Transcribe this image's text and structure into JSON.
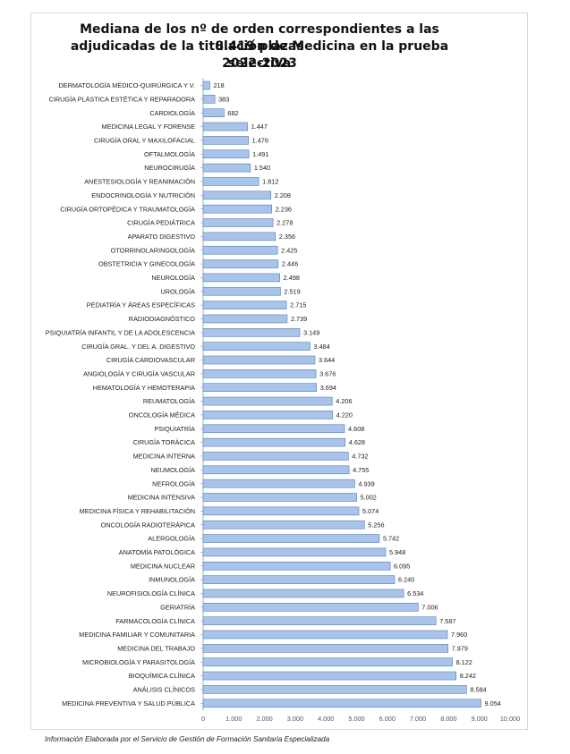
{
  "chart_data": {
    "type": "bar",
    "orientation": "horizontal",
    "title": "Mediana de los nº de orden correspondientes a las 8.419 plazas adjudicadas de la titulación de Medicina en la prueba selectiva 2022-2023",
    "title_lines": [
      "Mediana de los nº de orden correspondientes a las 8.419 plazas",
      "adjudicadas de la titulación de Medicina en la prueba selectiva",
      "2022-2023"
    ],
    "categories": [
      "DERMATOLOGÍA MÉDICO-QUIRÚRGICA Y V.",
      "CIRUGÍA PLÁSTICA ESTÉTICA Y REPARADORA",
      "CARDIOLOGÍA",
      "MEDICINA LEGAL Y FORENSE",
      "CIRUGÍA ORAL Y MAXILOFACIAL",
      "OFTALMOLOGÍA",
      "NEUROCIRUGÍA",
      "ANESTESIOLOGÍA Y REANIMACIÓN",
      "ENDOCRINOLOGÍA Y NUTRICIÓN",
      "CIRUGÍA ORTOPÉDICA Y TRAUMATOLOGÍA",
      "CIRUGÍA PEDIÁTRICA",
      "APARATO DIGESTIVO",
      "OTORRINOLARINGOLOGÍA",
      "OBSTETRICIA Y GINECOLOGÍA",
      "NEUROLOGÍA",
      "UROLOGÍA",
      "PEDIATRÍA Y ÁREAS ESPECÍFICAS",
      "RADIODIAGNÓSTICO",
      "PSIQUIATRÍA INFANTIL Y DE LA ADOLESCENCIA",
      "CIRUGÍA GRAL. Y DEL A. DIGESTIVO",
      "CIRUGÍA CARDIOVASCULAR",
      "ANGIOLOGÍA Y CIRUGÍA VASCULAR",
      "HEMATOLOGÍA Y HEMOTERAPIA",
      "REUMATOLOGÍA",
      "ONCOLOGÍA MÉDICA",
      "PSIQUIATRÍA",
      "CIRUGÍA TORÁCICA",
      "MEDICINA INTERNA",
      "NEUMOLOGÍA",
      "NEFROLOGÍA",
      "MEDICINA INTENSIVA",
      "MEDICINA FÍSICA Y REHABILITACIÓN",
      "ONCOLOGÍA RADIOTERÁPICA",
      "ALERGOLOGÍA",
      "ANATOMÍA PATOLÓGICA",
      "MEDICINA NUCLEAR",
      "INMUNOLOGÍA",
      "NEUROFISIOLOGÍA CLÍNICA",
      "GERIATRÍA",
      "FARMACOLOGÍA CLÍNICA",
      "MEDICINA FAMILIAR Y COMUNITARIA",
      "MEDICINA DEL TRABAJO",
      "MICROBIOLOGÍA Y PARASITOLOGÍA",
      "BIOQUÍMICA CLÍNICA",
      "ANÁLISIS CLÍNICOS",
      "MEDICINA PREVENTIVA Y SALUD PÚBLICA"
    ],
    "values": [
      218,
      383,
      682,
      1447,
      1476,
      1491,
      1540,
      1812,
      2208,
      2236,
      2278,
      2356,
      2425,
      2446,
      2498,
      2519,
      2715,
      2739,
      3149,
      3484,
      3644,
      3676,
      3694,
      4206,
      4220,
      4608,
      4628,
      4732,
      4755,
      4939,
      5002,
      5074,
      5256,
      5742,
      5948,
      6095,
      6240,
      6534,
      7006,
      7587,
      7960,
      7979,
      8122,
      8242,
      8584,
      9054
    ],
    "value_labels": [
      "218",
      "383",
      "682",
      "1.447",
      "1.476",
      "1.491",
      "1.540",
      "1.812",
      "2.208",
      "2.236",
      "2.278",
      "2.356",
      "2.425",
      "2.446",
      "2.498",
      "2.519",
      "2.715",
      "2.739",
      "3.149",
      "3.484",
      "3.644",
      "3.676",
      "3.694",
      "4.206",
      "4.220",
      "4.608",
      "4.628",
      "4.732",
      "4.755",
      "4.939",
      "5.002",
      "5.074",
      "5.256",
      "5.742",
      "5.948",
      "6.095",
      "6.240",
      "6.534",
      "7.006",
      "7.587",
      "7.960",
      "7.979",
      "8.122",
      "8.242",
      "8.584",
      "9.054"
    ],
    "xlim": [
      0,
      10000
    ],
    "xticks": [
      0,
      1000,
      2000,
      3000,
      4000,
      5000,
      6000,
      7000,
      8000,
      9000,
      10000
    ],
    "xtick_labels": [
      "0",
      "1.000",
      "2.000",
      "3.000",
      "4.000",
      "5.000",
      "6.000",
      "7.000",
      "8.000",
      "9.000",
      "10.000"
    ],
    "xlabel": "",
    "ylabel": "",
    "grid": false,
    "legend": "none",
    "bar_color": "#a9c4e8",
    "bar_edge_color": "#4f7fbf"
  },
  "footnote": "Información Elaborada por el Servicio de Gestión de Formación Sanitaria Especializada"
}
